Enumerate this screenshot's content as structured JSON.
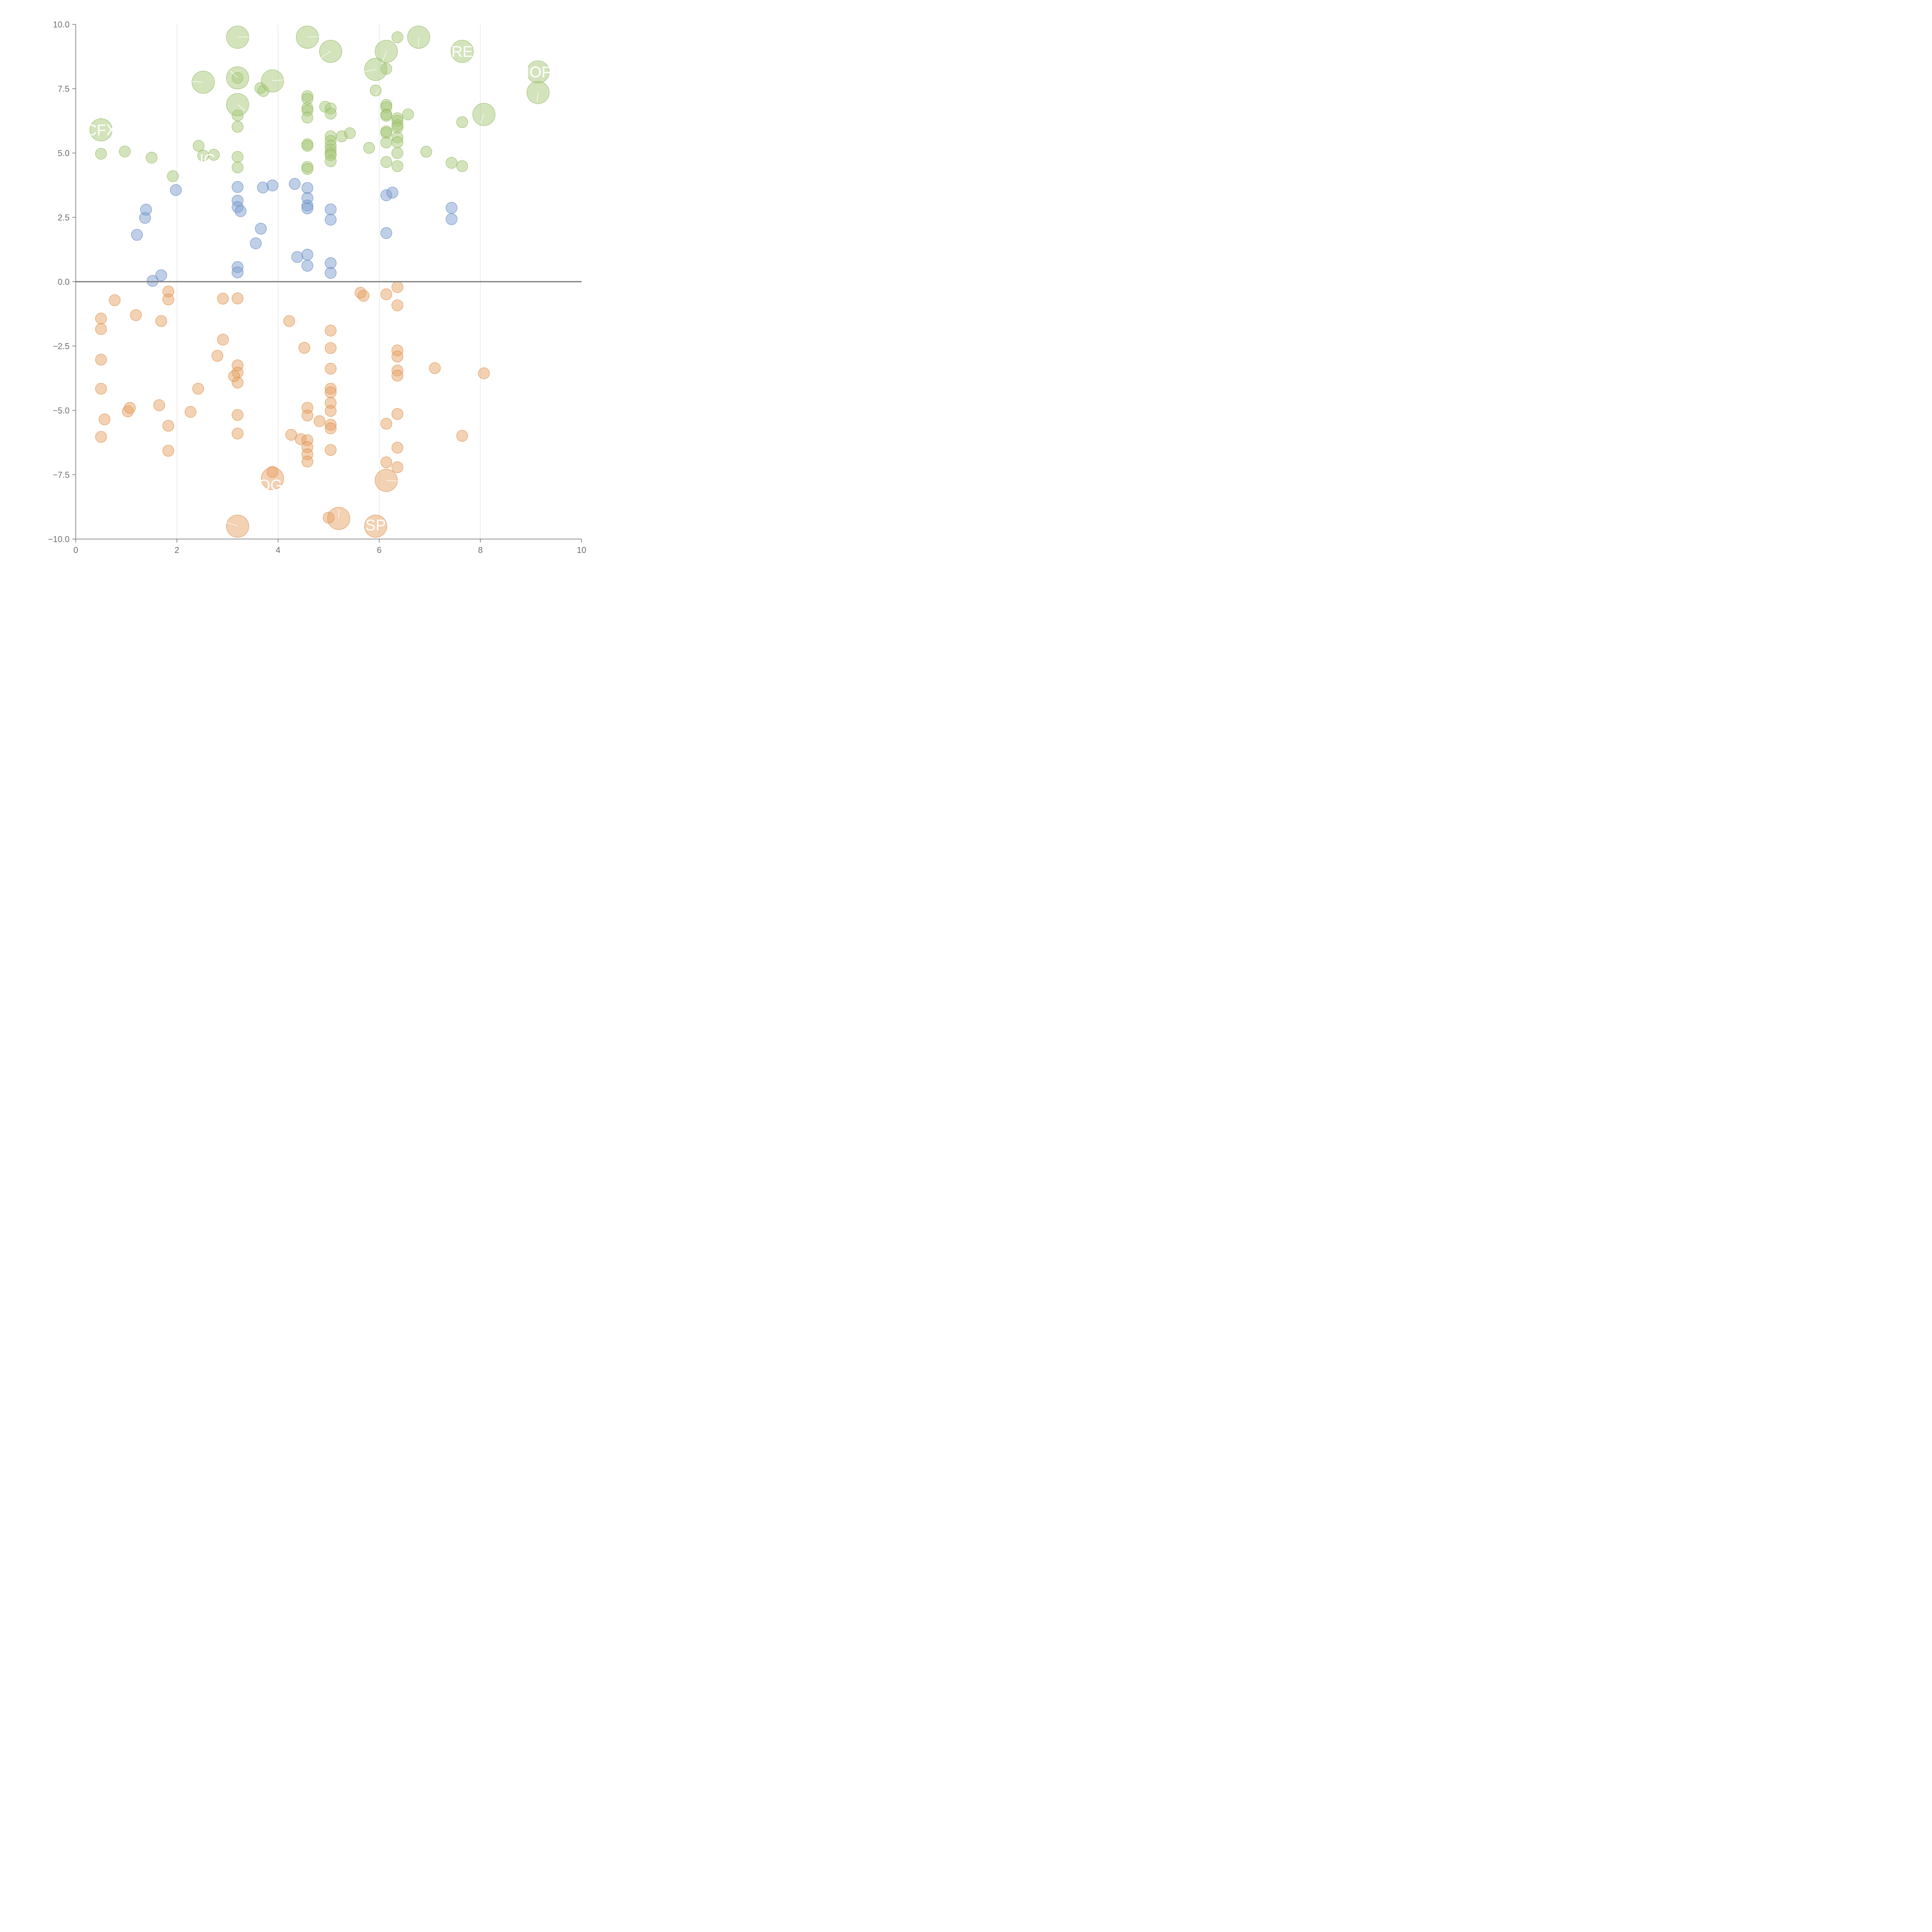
{
  "chart_data": {
    "type": "scatter",
    "title": "",
    "xlabel": "",
    "ylabel": "",
    "xlim": [
      0,
      10
    ],
    "ylim": [
      -10,
      10
    ],
    "x_ticks": [
      {
        "value": 0,
        "label": "0"
      },
      {
        "value": 2,
        "label": "2"
      },
      {
        "value": 4,
        "label": "4"
      },
      {
        "value": 6,
        "label": "6"
      },
      {
        "value": 8,
        "label": "8"
      },
      {
        "value": 10,
        "label": "10"
      }
    ],
    "y_ticks": [
      {
        "value": 10,
        "label": "10.0"
      },
      {
        "value": 7.5,
        "label": "7.5"
      },
      {
        "value": 5,
        "label": "5.0"
      },
      {
        "value": 2.5,
        "label": "2.5"
      },
      {
        "value": 0,
        "label": "0.0"
      },
      {
        "value": -2.5,
        "label": "−2.5"
      },
      {
        "value": -5,
        "label": "−5.0"
      },
      {
        "value": -7.5,
        "label": "−7.5"
      },
      {
        "value": -10,
        "label": "−10.0"
      }
    ],
    "x_grid_values": [
      2,
      4,
      6,
      8
    ],
    "reference_line_y": 0,
    "colors": {
      "green": "#a8c97a",
      "green_stroke": "#8db35a",
      "blue": "#7d9fd0",
      "blue_stroke": "#5a7fba",
      "orange": "#e8a468",
      "orange_stroke": "#d98a45",
      "axis": "#6e6e6e",
      "grid": "#dddddd"
    },
    "series": [
      {
        "name": "green",
        "color_key": "green",
        "points": [
          [
            0.5,
            4.97,
            1
          ],
          [
            0.97,
            5.06,
            1
          ],
          [
            1.5,
            4.82,
            1
          ],
          [
            1.92,
            4.1,
            1
          ],
          [
            2.43,
            5.28,
            1
          ],
          [
            2.52,
            4.9,
            1
          ],
          [
            2.73,
            4.93,
            1
          ],
          [
            3.2,
            4.85,
            1
          ],
          [
            3.2,
            4.44,
            1
          ],
          [
            3.2,
            6.02,
            1
          ],
          [
            3.2,
            6.46,
            1
          ],
          [
            3.2,
            7.92,
            1
          ],
          [
            3.65,
            7.52,
            1
          ],
          [
            3.71,
            7.41,
            1
          ],
          [
            4.58,
            7.21,
            1
          ],
          [
            4.58,
            7.1,
            1
          ],
          [
            4.58,
            6.75,
            1
          ],
          [
            4.58,
            6.65,
            1
          ],
          [
            4.58,
            6.38,
            1
          ],
          [
            4.58,
            5.34,
            1
          ],
          [
            4.58,
            5.28,
            1
          ],
          [
            4.58,
            4.46,
            1
          ],
          [
            4.58,
            4.38,
            1
          ],
          [
            4.93,
            6.8,
            1
          ],
          [
            5.04,
            6.73,
            1
          ],
          [
            5.04,
            6.53,
            1
          ],
          [
            5.04,
            5.65,
            1
          ],
          [
            5.04,
            5.47,
            1
          ],
          [
            5.04,
            5.29,
            1
          ],
          [
            5.04,
            5.13,
            1
          ],
          [
            5.04,
            4.99,
            1
          ],
          [
            5.04,
            4.91,
            1
          ],
          [
            5.04,
            4.68,
            1
          ],
          [
            5.26,
            5.65,
            1
          ],
          [
            5.42,
            5.77,
            1
          ],
          [
            5.8,
            5.2,
            1
          ],
          [
            5.93,
            7.43,
            1
          ],
          [
            6.14,
            8.27,
            1
          ],
          [
            6.14,
            6.87,
            1
          ],
          [
            6.14,
            6.78,
            1
          ],
          [
            6.14,
            6.5,
            1
          ],
          [
            6.14,
            6.45,
            1
          ],
          [
            6.14,
            5.84,
            1
          ],
          [
            6.14,
            5.78,
            1
          ],
          [
            6.14,
            5.41,
            1
          ],
          [
            6.14,
            4.65,
            1
          ],
          [
            6.36,
            9.5,
            1
          ],
          [
            6.36,
            6.35,
            1
          ],
          [
            6.36,
            6.25,
            1
          ],
          [
            6.36,
            6.08,
            1
          ],
          [
            6.36,
            5.99,
            1
          ],
          [
            6.36,
            5.61,
            1
          ],
          [
            6.36,
            5.42,
            1
          ],
          [
            6.36,
            5.0,
            1
          ],
          [
            6.36,
            4.49,
            1
          ],
          [
            6.57,
            6.5,
            1
          ],
          [
            6.93,
            5.05,
            1
          ],
          [
            7.43,
            4.62,
            1
          ],
          [
            7.64,
            6.2,
            1
          ],
          [
            7.64,
            4.49,
            1
          ],
          [
            0.5,
            5.9,
            2
          ],
          [
            2.52,
            7.75,
            2
          ],
          [
            3.2,
            9.5,
            2
          ],
          [
            3.2,
            7.92,
            2
          ],
          [
            3.2,
            6.88,
            2
          ],
          [
            3.89,
            7.8,
            2
          ],
          [
            4.58,
            9.5,
            2
          ],
          [
            5.04,
            8.95,
            2
          ],
          [
            5.93,
            8.25,
            2
          ],
          [
            6.14,
            8.95,
            2
          ],
          [
            6.78,
            9.5,
            2
          ],
          [
            7.64,
            8.95,
            2
          ],
          [
            8.07,
            6.5,
            2
          ],
          [
            9.14,
            8.15,
            2
          ],
          [
            9.14,
            7.35,
            2
          ]
        ]
      },
      {
        "name": "blue",
        "color_key": "blue",
        "points": [
          [
            1.21,
            1.82,
            1
          ],
          [
            1.37,
            2.48,
            1
          ],
          [
            1.39,
            2.8,
            1
          ],
          [
            1.52,
            0.03,
            1
          ],
          [
            1.69,
            0.25,
            1
          ],
          [
            1.98,
            3.56,
            1
          ],
          [
            3.2,
            3.68,
            1
          ],
          [
            3.2,
            3.15,
            1
          ],
          [
            3.2,
            2.9,
            1
          ],
          [
            3.26,
            2.74,
            1
          ],
          [
            3.2,
            0.57,
            1
          ],
          [
            3.2,
            0.36,
            1
          ],
          [
            3.56,
            1.49,
            1
          ],
          [
            3.66,
            2.06,
            1
          ],
          [
            3.7,
            3.66,
            1
          ],
          [
            3.89,
            3.74,
            1
          ],
          [
            4.33,
            3.8,
            1
          ],
          [
            4.38,
            0.96,
            1
          ],
          [
            4.58,
            3.64,
            1
          ],
          [
            4.58,
            3.25,
            1
          ],
          [
            4.58,
            2.96,
            1
          ],
          [
            4.58,
            2.85,
            1
          ],
          [
            4.58,
            1.05,
            1
          ],
          [
            4.58,
            0.62,
            1
          ],
          [
            5.04,
            2.81,
            1
          ],
          [
            5.04,
            2.41,
            1
          ],
          [
            5.04,
            0.72,
            1
          ],
          [
            5.04,
            0.34,
            1
          ],
          [
            6.14,
            3.36,
            1
          ],
          [
            6.26,
            3.46,
            1
          ],
          [
            6.14,
            1.89,
            1
          ],
          [
            7.43,
            2.87,
            1
          ],
          [
            7.43,
            2.43,
            1
          ]
        ]
      },
      {
        "name": "orange",
        "color_key": "orange",
        "points": [
          [
            0.5,
            -1.43,
            1
          ],
          [
            0.5,
            -1.84,
            1
          ],
          [
            0.5,
            -3.03,
            1
          ],
          [
            0.5,
            -4.16,
            1
          ],
          [
            0.5,
            -6.03,
            1
          ],
          [
            0.57,
            -5.35,
            1
          ],
          [
            0.77,
            -0.72,
            1
          ],
          [
            1.03,
            -5.04,
            1
          ],
          [
            1.07,
            -4.9,
            1
          ],
          [
            1.19,
            -1.3,
            1
          ],
          [
            1.65,
            -4.8,
            1
          ],
          [
            1.69,
            -1.53,
            1
          ],
          [
            1.83,
            -0.38,
            1
          ],
          [
            1.83,
            -0.69,
            1
          ],
          [
            1.83,
            -5.6,
            1
          ],
          [
            1.83,
            -6.57,
            1
          ],
          [
            2.27,
            -5.06,
            1
          ],
          [
            2.42,
            -4.16,
            1
          ],
          [
            2.8,
            -2.88,
            1
          ],
          [
            2.91,
            -2.25,
            1
          ],
          [
            2.91,
            -0.66,
            1
          ],
          [
            3.2,
            -0.65,
            1
          ],
          [
            3.2,
            -3.25,
            1
          ],
          [
            3.2,
            -3.53,
            1
          ],
          [
            3.2,
            -3.92,
            1
          ],
          [
            3.13,
            -3.67,
            1
          ],
          [
            3.2,
            -5.18,
            1
          ],
          [
            3.2,
            -5.9,
            1
          ],
          [
            3.89,
            -7.39,
            1
          ],
          [
            4.22,
            -1.53,
            1
          ],
          [
            4.26,
            -5.95,
            1
          ],
          [
            4.45,
            -6.12,
            1
          ],
          [
            4.52,
            -2.57,
            1
          ],
          [
            4.58,
            -4.9,
            1
          ],
          [
            4.58,
            -5.2,
            1
          ],
          [
            4.58,
            -6.16,
            1
          ],
          [
            4.58,
            -6.43,
            1
          ],
          [
            4.58,
            -6.71,
            1
          ],
          [
            4.58,
            -6.99,
            1
          ],
          [
            4.82,
            -5.42,
            1
          ],
          [
            5.04,
            -1.9,
            1
          ],
          [
            5.04,
            -2.58,
            1
          ],
          [
            5.04,
            -3.38,
            1
          ],
          [
            5.04,
            -4.16,
            1
          ],
          [
            5.04,
            -4.3,
            1
          ],
          [
            5.04,
            -4.71,
            1
          ],
          [
            5.04,
            -5.02,
            1
          ],
          [
            5.04,
            -5.56,
            1
          ],
          [
            5.04,
            -5.7,
            1
          ],
          [
            5.04,
            -6.54,
            1
          ],
          [
            5.0,
            -9.17,
            1
          ],
          [
            5.63,
            -0.43,
            1
          ],
          [
            5.69,
            -0.55,
            1
          ],
          [
            6.14,
            -0.49,
            1
          ],
          [
            6.14,
            -5.52,
            1
          ],
          [
            6.14,
            -7.02,
            1
          ],
          [
            6.36,
            -0.21,
            1
          ],
          [
            6.36,
            -0.92,
            1
          ],
          [
            6.36,
            -2.67,
            1
          ],
          [
            6.36,
            -2.91,
            1
          ],
          [
            6.36,
            -3.45,
            1
          ],
          [
            6.36,
            -3.65,
            1
          ],
          [
            6.36,
            -5.14,
            1
          ],
          [
            6.36,
            -6.45,
            1
          ],
          [
            6.36,
            -7.21,
            1
          ],
          [
            7.1,
            -3.36,
            1
          ],
          [
            7.64,
            -5.99,
            1
          ],
          [
            8.07,
            -3.56,
            1
          ],
          [
            3.2,
            -9.5,
            2
          ],
          [
            3.89,
            -7.65,
            2
          ],
          [
            5.2,
            -9.2,
            2
          ],
          [
            5.93,
            -9.5,
            2
          ],
          [
            6.14,
            -7.72,
            2
          ]
        ]
      }
    ],
    "annotations": [
      {
        "text": "CFX",
        "x": 0.5,
        "y": 5.9
      },
      {
        "text": "RE",
        "x": 7.64,
        "y": 8.95
      },
      {
        "text": "IOF",
        "x": 9.14,
        "y": 8.15
      },
      {
        "text": "C",
        "x": 3.5,
        "y": 6.6
      },
      {
        "text": "IC",
        "x": 2.6,
        "y": 4.75
      },
      {
        "text": "OGI",
        "x": 3.89,
        "y": -7.9
      },
      {
        "text": "SP",
        "x": 5.93,
        "y": -9.45
      }
    ],
    "leaders": [
      [
        3.2,
        9.5,
        3.55,
        9.52
      ],
      [
        4.58,
        9.5,
        4.85,
        9.53
      ],
      [
        5.04,
        8.95,
        4.85,
        8.7
      ],
      [
        6.14,
        8.95,
        6.05,
        8.45
      ],
      [
        6.78,
        9.5,
        6.78,
        9.1
      ],
      [
        5.93,
        8.25,
        5.7,
        8.15
      ],
      [
        5.93,
        7.25,
        6.0,
        7.5
      ],
      [
        3.2,
        7.92,
        3.05,
        8.2
      ],
      [
        3.89,
        7.8,
        4.15,
        7.85
      ],
      [
        2.52,
        7.75,
        2.3,
        7.78
      ],
      [
        3.2,
        6.88,
        3.35,
        6.65
      ],
      [
        8.07,
        6.5,
        8.0,
        6.15
      ],
      [
        9.14,
        7.35,
        9.12,
        7.0
      ],
      [
        3.2,
        -9.5,
        2.9,
        -9.3
      ],
      [
        5.2,
        -9.2,
        5.2,
        -8.85
      ],
      [
        6.14,
        -7.72,
        6.5,
        -7.77
      ]
    ]
  }
}
